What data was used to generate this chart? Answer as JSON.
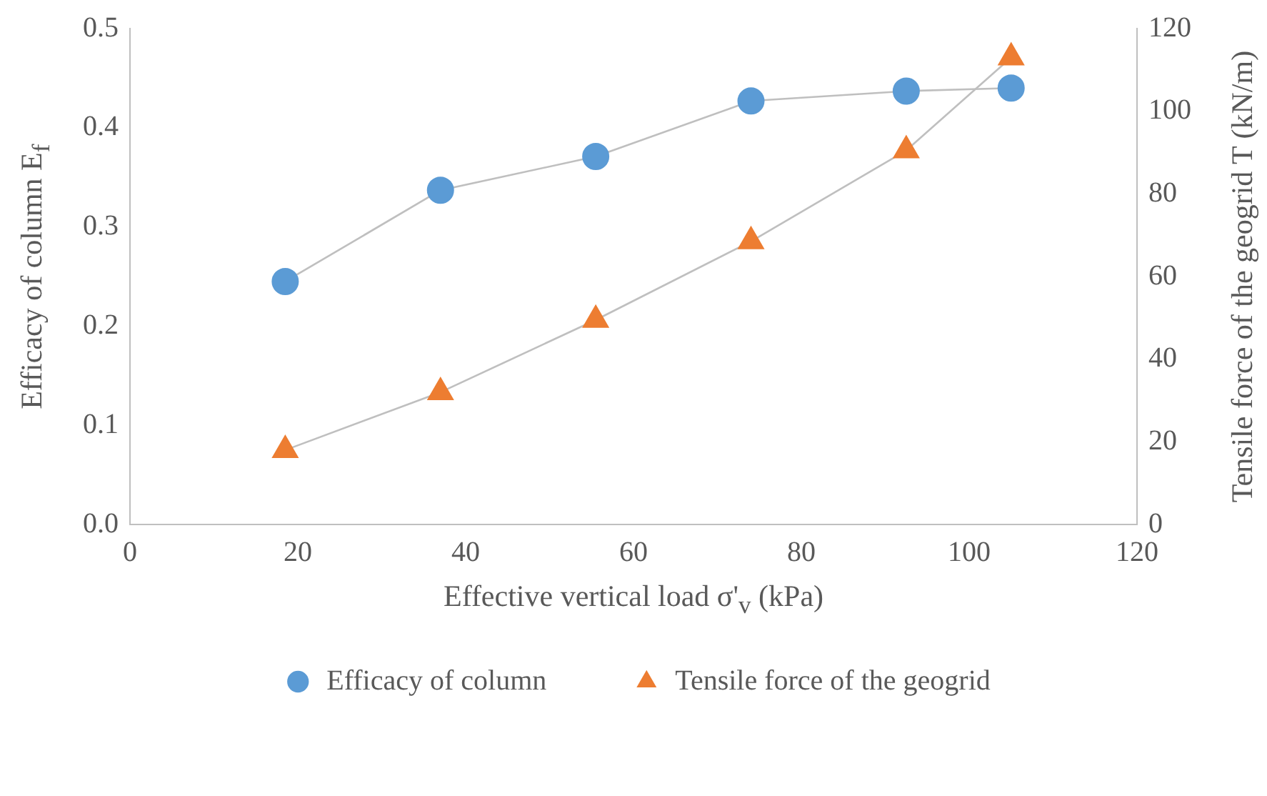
{
  "chart_data": {
    "type": "line",
    "xlabel": "Effective vertical load σ'$_{v}$ (kPa)",
    "ylabel": "Efficacy of column E$_{f}$",
    "y2label": "Tensile force of the geogrid T (kN/m)",
    "xlim": [
      0,
      120
    ],
    "xticks": [
      0,
      20,
      40,
      60,
      80,
      100,
      120
    ],
    "ylim": [
      0,
      0.5
    ],
    "yticks": [
      {
        "value": 0,
        "label": "0.0"
      },
      {
        "value": 0.1,
        "label": "0.1"
      },
      {
        "value": 0.2,
        "label": "0.2"
      },
      {
        "value": 0.3,
        "label": "0.3"
      },
      {
        "value": 0.4,
        "label": "0.4"
      },
      {
        "value": 0.5,
        "label": "0.5"
      }
    ],
    "y2lim": [
      0,
      120
    ],
    "y2ticks": [
      0,
      20,
      40,
      60,
      80,
      100,
      120
    ],
    "grid": false,
    "legend": "bottom",
    "series": [
      {
        "name": "Efficacy of column",
        "color": "#5b9bd5",
        "marker": "circle",
        "x": [
          18.5,
          37,
          55.5,
          74,
          92.5,
          105
        ],
        "values": [
          0.245,
          0.337,
          0.371,
          0.427,
          0.437,
          0.44
        ]
      },
      {
        "name": "Tensile force of the geogrid",
        "color": "#ed7d31",
        "marker": "triangle",
        "axis": "y2",
        "x": [
          18.5,
          37,
          55.5,
          74,
          92.5,
          105
        ],
        "values": [
          18,
          32,
          49.5,
          68.5,
          90.5,
          113
        ]
      }
    ]
  }
}
